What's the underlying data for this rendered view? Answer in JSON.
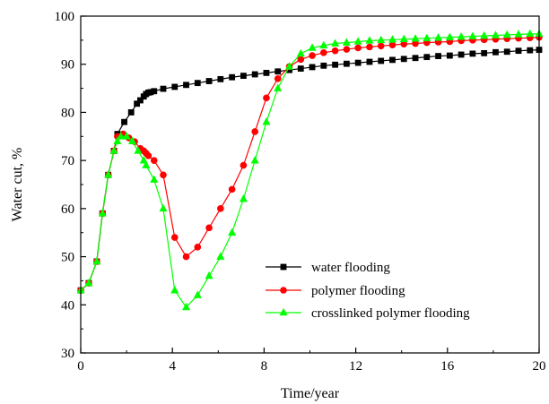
{
  "chart_data": {
    "type": "line",
    "title": "",
    "xlabel": "Time/year",
    "ylabel": "Water cut, %",
    "xlim": [
      0,
      20
    ],
    "ylim": [
      30,
      100
    ],
    "xticks": [
      "0",
      "4",
      "8",
      "12",
      "16",
      "20"
    ],
    "xtick_values": [
      0,
      4,
      8,
      12,
      16,
      20
    ],
    "yticks": [
      "30",
      "40",
      "50",
      "60",
      "70",
      "80",
      "90",
      "100"
    ],
    "ytick_values": [
      30,
      40,
      50,
      60,
      70,
      80,
      90,
      100
    ],
    "grid": false,
    "legend_position": "lower-right",
    "series": [
      {
        "name": "water flooding",
        "color": "#000000",
        "marker": "square",
        "x": [
          0,
          0.35,
          0.7,
          0.95,
          1.2,
          1.45,
          1.6,
          1.9,
          2.2,
          2.45,
          2.6,
          2.75,
          2.85,
          2.95,
          3.05,
          3.2,
          3.6,
          4.1,
          4.6,
          5.1,
          5.6,
          6.1,
          6.6,
          7.1,
          7.6,
          8.1,
          8.6,
          9.1,
          9.6,
          10.1,
          10.6,
          11.1,
          11.6,
          12.1,
          12.6,
          13.1,
          13.6,
          14.1,
          14.6,
          15.1,
          15.6,
          16.1,
          16.6,
          17.1,
          17.6,
          18.1,
          18.6,
          19.1,
          19.6,
          20.0
        ],
        "values": [
          43,
          44.5,
          49,
          59,
          67,
          72,
          75.5,
          78,
          80,
          81.8,
          82.5,
          83.3,
          83.8,
          84.1,
          84.2,
          84.4,
          84.9,
          85.3,
          85.7,
          86.1,
          86.5,
          86.9,
          87.3,
          87.6,
          87.9,
          88.2,
          88.5,
          88.8,
          89.1,
          89.4,
          89.7,
          89.9,
          90.1,
          90.3,
          90.5,
          90.7,
          90.9,
          91.1,
          91.3,
          91.5,
          91.7,
          91.8,
          92.0,
          92.2,
          92.3,
          92.5,
          92.6,
          92.8,
          92.9,
          93.0
        ]
      },
      {
        "name": "polymer flooding",
        "color": "#ff0000",
        "marker": "circle",
        "x": [
          0,
          0.35,
          0.7,
          0.95,
          1.2,
          1.45,
          1.6,
          1.85,
          2.1,
          2.35,
          2.6,
          2.75,
          2.85,
          2.95,
          3.2,
          3.6,
          4.1,
          4.6,
          5.1,
          5.6,
          6.1,
          6.6,
          7.1,
          7.6,
          8.1,
          8.6,
          9.1,
          9.6,
          10.1,
          10.6,
          11.1,
          11.6,
          12.1,
          12.6,
          13.1,
          13.6,
          14.1,
          14.6,
          15.1,
          15.6,
          16.1,
          16.6,
          17.1,
          17.6,
          18.1,
          18.6,
          19.1,
          19.6,
          20.0
        ],
        "values": [
          43,
          44.5,
          49,
          59,
          67,
          72,
          75,
          75.5,
          74.7,
          73.9,
          72.5,
          72,
          71.5,
          71,
          70,
          67,
          54,
          50,
          52,
          56,
          60,
          64,
          69,
          76,
          83,
          87,
          89.5,
          91,
          91.8,
          92.4,
          92.8,
          93.1,
          93.4,
          93.6,
          93.8,
          94.0,
          94.2,
          94.3,
          94.5,
          94.6,
          94.7,
          94.9,
          95.0,
          95.1,
          95.2,
          95.3,
          95.4,
          95.5,
          95.6
        ]
      },
      {
        "name": "crosslinked polymer flooding",
        "color": "#00ff00",
        "marker": "triangle",
        "x": [
          0,
          0.35,
          0.7,
          0.95,
          1.2,
          1.45,
          1.6,
          1.75,
          2.0,
          2.25,
          2.5,
          2.75,
          2.85,
          3.2,
          3.6,
          4.1,
          4.6,
          5.1,
          5.6,
          6.1,
          6.6,
          7.1,
          7.6,
          8.1,
          8.6,
          9.1,
          9.6,
          10.1,
          10.6,
          11.1,
          11.6,
          12.1,
          12.6,
          13.1,
          13.6,
          14.1,
          14.6,
          15.1,
          15.6,
          16.1,
          16.6,
          17.1,
          17.6,
          18.1,
          18.6,
          19.1,
          19.6,
          20.0
        ],
        "values": [
          43,
          44.5,
          49,
          59,
          67,
          72,
          74,
          75,
          75,
          74,
          72,
          70,
          69,
          66,
          60,
          43,
          39.5,
          42,
          46,
          50,
          55,
          62,
          70,
          78,
          85,
          89.5,
          92.2,
          93.4,
          93.9,
          94.3,
          94.5,
          94.7,
          94.9,
          95.0,
          95.1,
          95.2,
          95.3,
          95.4,
          95.5,
          95.6,
          95.7,
          95.8,
          95.9,
          96.0,
          96.1,
          96.2,
          96.3,
          96.3
        ]
      }
    ]
  }
}
